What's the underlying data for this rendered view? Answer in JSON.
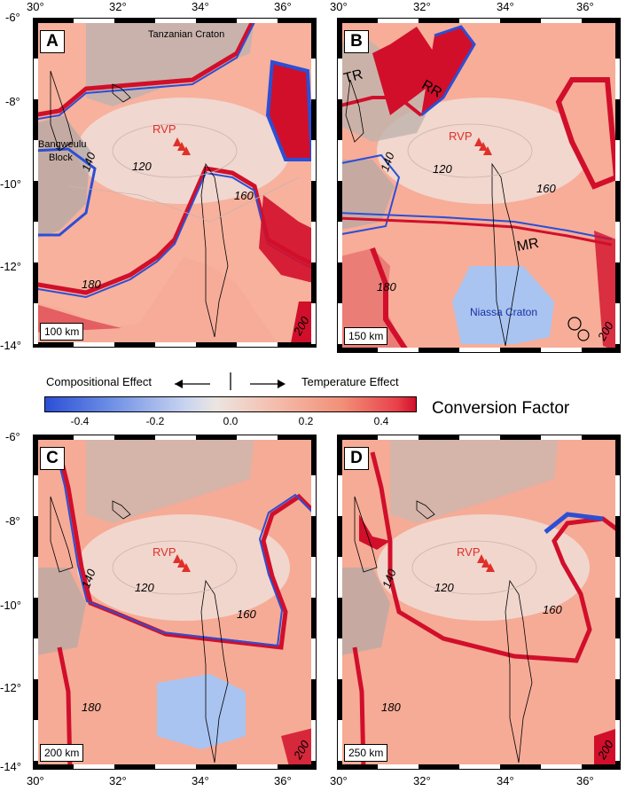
{
  "panels": [
    {
      "letter": "A",
      "depth": "100 km",
      "craton_label": "Tanzanian Craton",
      "block_label_1": "Bangweulu",
      "block_label_2": "Block",
      "rvp": "RVP",
      "contours": [
        "140",
        "120",
        "160",
        "180",
        "200"
      ]
    },
    {
      "letter": "B",
      "depth": "150 km",
      "rift_tr": "TR",
      "rift_rr": "RR",
      "rift_mr": "MR",
      "craton_label": "Niassa Craton",
      "rvp": "RVP",
      "contours": [
        "140",
        "120",
        "160",
        "180",
        "200"
      ]
    },
    {
      "letter": "C",
      "depth": "200 km",
      "rvp": "RVP",
      "contours": [
        "140",
        "120",
        "160",
        "180",
        "200"
      ]
    },
    {
      "letter": "D",
      "depth": "250 km",
      "rvp": "RVP",
      "contours": [
        "140",
        "120",
        "160",
        "180",
        "200"
      ]
    }
  ],
  "axes": {
    "lat_labels": [
      "-6°",
      "-8°",
      "-10°",
      "-12°",
      "-14°"
    ],
    "lon_labels": [
      "30°",
      "32°",
      "34°",
      "36°"
    ]
  },
  "legend": {
    "compositional": "Compositional Effect",
    "temperature": "Temperature Effect",
    "title": "Conversion Factor",
    "ticks": [
      "-0.4",
      "-0.2",
      "0.0",
      "0.2",
      "0.4"
    ],
    "colors": {
      "blue": "#2b4fd6",
      "light_blue": "#a9c4f0",
      "neutral": "#e8e2de",
      "salmon": "#f4a08a",
      "red": "#d10f2b"
    }
  }
}
